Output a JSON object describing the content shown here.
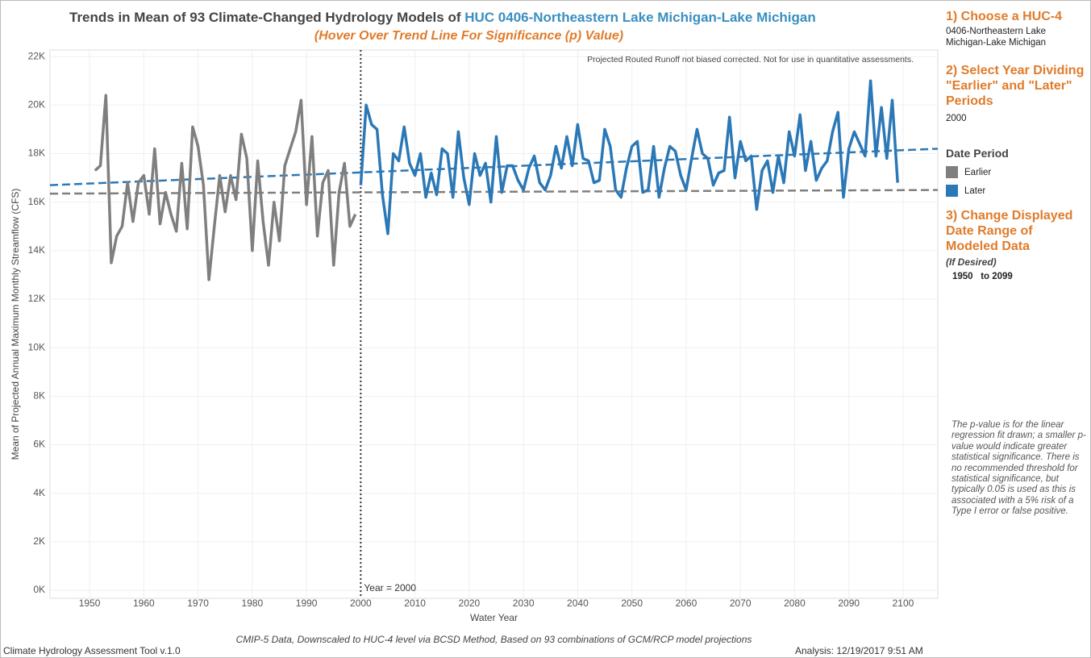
{
  "chart_data": {
    "type": "line",
    "title": "Trends in Mean of 93 Climate-Changed Hydrology Models of ",
    "title_huc": "HUC 0406-Northeastern Lake Michigan-Lake Michigan",
    "title_huc_color": "#3a8fc0",
    "subtitle": "(Hover Over Trend Line For Significance (p) Value)",
    "note": "Projected Routed Runoff not biased corrected.  Not for use in quantitative assessments.",
    "x_label": "Water Year",
    "y_label": "Mean of Projected Annual Maximum Monthly Streamflow (CFS)",
    "xlim": [
      1942.7,
      2106.4
    ],
    "xticks": [
      1950,
      1960,
      1970,
      1980,
      1990,
      2000,
      2010,
      2020,
      2030,
      2040,
      2050,
      2060,
      2070,
      2080,
      2090,
      2100
    ],
    "ylim": [
      -330,
      22270
    ],
    "yticks": [
      {
        "value": 0,
        "label": "0K"
      },
      {
        "value": 2000,
        "label": "2K"
      },
      {
        "value": 4000,
        "label": "4K"
      },
      {
        "value": 6000,
        "label": "6K"
      },
      {
        "value": 8000,
        "label": "8K"
      },
      {
        "value": 10000,
        "label": "10K"
      },
      {
        "value": 12000,
        "label": "12K"
      },
      {
        "value": 14000,
        "label": "14K"
      },
      {
        "value": 16000,
        "label": "16K"
      },
      {
        "value": 18000,
        "label": "18K"
      },
      {
        "value": 20000,
        "label": "20K"
      },
      {
        "value": 22000,
        "label": "22K"
      }
    ],
    "grid": true,
    "reference_line": {
      "x": 2000,
      "label": "Year = 2000"
    },
    "legend_title": "Date Period",
    "series": [
      {
        "name": "Earlier",
        "color": "#7f7f7f",
        "x": [
          1951,
          1952,
          1953,
          1954,
          1955,
          1956,
          1957,
          1958,
          1959,
          1960,
          1961,
          1962,
          1963,
          1964,
          1965,
          1966,
          1967,
          1968,
          1969,
          1970,
          1971,
          1972,
          1973,
          1974,
          1975,
          1976,
          1977,
          1978,
          1979,
          1980,
          1981,
          1982,
          1983,
          1984,
          1985,
          1986,
          1987,
          1988,
          1989,
          1990,
          1991,
          1992,
          1993,
          1994,
          1995,
          1996,
          1997,
          1998,
          1999
        ],
        "values": [
          17300,
          17500,
          20400,
          13500,
          14600,
          15000,
          16800,
          15200,
          16800,
          17100,
          15500,
          18200,
          15100,
          16400,
          15500,
          14800,
          17600,
          14900,
          19100,
          18300,
          16700,
          12800,
          15000,
          17100,
          15600,
          17100,
          16100,
          18800,
          17800,
          14000,
          17700,
          15200,
          13400,
          16000,
          14400,
          17500,
          18200,
          18900,
          20200,
          15900,
          18700,
          14600,
          16800,
          17300,
          13400,
          16400,
          17600,
          15000,
          15500
        ],
        "trend": [
          16350,
          16500
        ]
      },
      {
        "name": "Later",
        "color": "#2b78b7",
        "x": [
          2000,
          2001,
          2002,
          2003,
          2004,
          2005,
          2006,
          2007,
          2008,
          2009,
          2010,
          2011,
          2012,
          2013,
          2014,
          2015,
          2016,
          2017,
          2018,
          2019,
          2020,
          2021,
          2022,
          2023,
          2024,
          2025,
          2026,
          2027,
          2028,
          2029,
          2030,
          2031,
          2032,
          2033,
          2034,
          2035,
          2036,
          2037,
          2038,
          2039,
          2040,
          2041,
          2042,
          2043,
          2044,
          2045,
          2046,
          2047,
          2048,
          2049,
          2050,
          2051,
          2052,
          2053,
          2054,
          2055,
          2056,
          2057,
          2058,
          2059,
          2060,
          2061,
          2062,
          2063,
          2064,
          2065,
          2066,
          2067,
          2068,
          2069,
          2070,
          2071,
          2072,
          2073,
          2074,
          2075,
          2076,
          2077,
          2078,
          2079,
          2080,
          2081,
          2082,
          2083,
          2084,
          2085,
          2086,
          2087,
          2088,
          2089,
          2090,
          2091,
          2092,
          2093,
          2094,
          2095,
          2096,
          2097,
          2098,
          2099
        ],
        "values": [
          16700,
          20000,
          19200,
          19000,
          16300,
          14700,
          18000,
          17700,
          19100,
          17600,
          17100,
          18000,
          16200,
          17200,
          16300,
          18200,
          18000,
          16200,
          18900,
          17000,
          15900,
          18000,
          17100,
          17600,
          16000,
          18700,
          16400,
          17500,
          17500,
          16900,
          16500,
          17400,
          17900,
          16800,
          16500,
          17100,
          18300,
          17400,
          18700,
          17500,
          19200,
          17800,
          17700,
          16800,
          16900,
          19000,
          18300,
          16500,
          16200,
          17400,
          18300,
          18500,
          16400,
          16500,
          18300,
          16200,
          17400,
          18300,
          18100,
          17100,
          16500,
          17800,
          19000,
          18000,
          17800,
          16700,
          17200,
          17300,
          19500,
          17000,
          18500,
          17700,
          17900,
          15700,
          17300,
          17700,
          16400,
          17900,
          16800,
          18900,
          17900,
          19600,
          17300,
          18500,
          16900,
          17400,
          17700,
          18900,
          19700,
          16200,
          18200,
          18900,
          18400,
          17900,
          21000,
          17900,
          19900,
          17800,
          20200,
          16800
        ],
        "trend": [
          16700,
          18200
        ]
      }
    ]
  },
  "panel": {
    "step1": "1) Choose a HUC-4",
    "huc": "0406-Northeastern Lake Michigan-Lake Michigan",
    "step2": "2) Select Year Dividing \"Earlier\" and \"Later\" Periods",
    "year": "2000",
    "step3": "3) Change Displayed Date Range of Modeled Data",
    "if_desired": "(If Desired)",
    "range_from": "1950",
    "range_to": "to 2099",
    "pvalue_note": "The p-value is for the linear regression fit drawn; a smaller p-value would indicate greater statistical significance. There is no recommended threshold for statistical significance, but typically 0.05 is used as this is associated with a 5% risk of a Type I error or false positive."
  },
  "footer": {
    "source": "CMIP-5 Data, Downscaled to HUC-4 level via BCSD Method, Based on 93 combinations of GCM/RCP model projections",
    "tool": "Climate Hydrology Assessment Tool v.1.0",
    "analysis": "Analysis: 12/19/2017 9:51 AM"
  }
}
